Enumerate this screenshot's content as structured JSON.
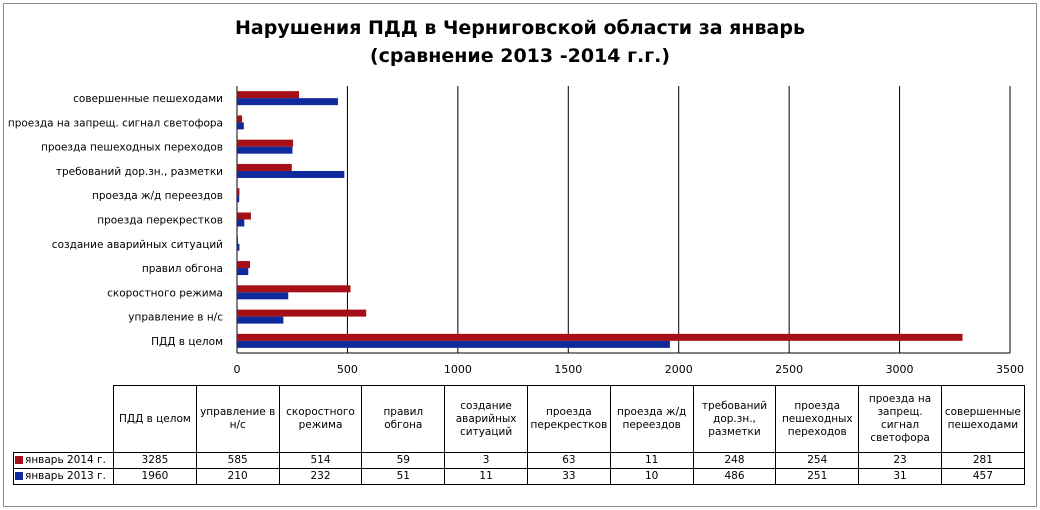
{
  "chart_data": {
    "type": "bar",
    "orientation": "horizontal",
    "title": [
      "Нарушения ПДД в Черниговской области за январь",
      "(сравнение 2013 -2014 г.г.)"
    ],
    "categories": [
      "ПДД в целом",
      "управление в н/с",
      "скоростного режима",
      "правил обгона",
      "создание аварийных ситуаций",
      "проезда перекрестков",
      "проезда ж/д переездов",
      "требований дор.зн., разметки",
      "проезда пешеходных переходов",
      "проезда на запрещ. сигнал светофора",
      "совершенные  пешеходами"
    ],
    "table_headers": [
      "ПДД в целом",
      "управление в н/с",
      "скоростного режима",
      "правил обгона",
      "создание аварийных ситуаций",
      "проезда перекрестков",
      "проезда ж/д переездов",
      "требований дор.зн., разметки",
      "проезда пешеходных переходов",
      "проезда на запрещ. сигнал светофора",
      "совершенные пешеходами"
    ],
    "series": [
      {
        "name": "январь 2014 г.",
        "color": "#a50f15",
        "values": [
          3285,
          585,
          514,
          59,
          3,
          63,
          11,
          248,
          254,
          23,
          281
        ]
      },
      {
        "name": "январь 2013 г.",
        "color": "#0f2a9c",
        "values": [
          1960,
          210,
          232,
          51,
          11,
          33,
          10,
          486,
          251,
          31,
          457
        ]
      }
    ],
    "xlim": [
      0,
      3500
    ],
    "xticks": [
      0,
      500,
      1000,
      1500,
      2000,
      2500,
      3000,
      3500
    ],
    "grid": true,
    "legend": "data-table"
  }
}
